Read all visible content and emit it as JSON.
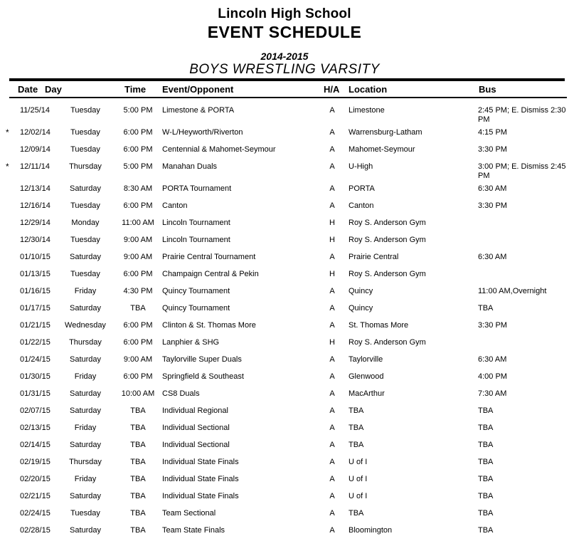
{
  "header": {
    "school": "Lincoln High School",
    "doc_title": "EVENT SCHEDULE",
    "season": "2014-2015",
    "team": "BOYS WRESTLING VARSITY"
  },
  "colors": {
    "text": "#000000",
    "background": "#ffffff"
  },
  "table": {
    "columns": {
      "date": "Date",
      "day": "Day",
      "time": "Time",
      "event": "Event/Opponent",
      "ha": "H/A",
      "location": "Location",
      "bus": "Bus"
    },
    "rows": [
      {
        "star": "",
        "date": "11/25/14",
        "day": "Tuesday",
        "time": "5:00 PM",
        "event": "Limestone & PORTA",
        "ha": "A",
        "location": "Limestone",
        "bus": "2:45 PM; E. Dismiss 2:30 PM"
      },
      {
        "star": "*",
        "date": "12/02/14",
        "day": "Tuesday",
        "time": "6:00 PM",
        "event": "W-L/Heyworth/Riverton",
        "ha": "A",
        "location": "Warrensburg-Latham",
        "bus": "4:15 PM"
      },
      {
        "star": "",
        "date": "12/09/14",
        "day": "Tuesday",
        "time": "6:00 PM",
        "event": "Centennial & Mahomet-Seymour",
        "ha": "A",
        "location": "Mahomet-Seymour",
        "bus": "3:30 PM"
      },
      {
        "star": "*",
        "date": "12/11/14",
        "day": "Thursday",
        "time": "5:00 PM",
        "event": "Manahan Duals",
        "ha": "A",
        "location": "U-High",
        "bus": "3:00 PM; E. Dismiss 2:45 PM"
      },
      {
        "star": "",
        "date": "12/13/14",
        "day": "Saturday",
        "time": "8:30 AM",
        "event": "PORTA Tournament",
        "ha": "A",
        "location": "PORTA",
        "bus": "6:30 AM"
      },
      {
        "star": "",
        "date": "12/16/14",
        "day": "Tuesday",
        "time": "6:00 PM",
        "event": "Canton",
        "ha": "A",
        "location": "Canton",
        "bus": "3:30 PM"
      },
      {
        "star": "",
        "date": "12/29/14",
        "day": "Monday",
        "time": "11:00 AM",
        "event": "Lincoln Tournament",
        "ha": "H",
        "location": "Roy S. Anderson Gym",
        "bus": ""
      },
      {
        "star": "",
        "date": "12/30/14",
        "day": "Tuesday",
        "time": "9:00 AM",
        "event": "Lincoln Tournament",
        "ha": "H",
        "location": "Roy S. Anderson Gym",
        "bus": ""
      },
      {
        "star": "",
        "date": "01/10/15",
        "day": "Saturday",
        "time": "9:00 AM",
        "event": "Prairie Central Tournament",
        "ha": "A",
        "location": "Prairie Central",
        "bus": "6:30 AM"
      },
      {
        "star": "",
        "date": "01/13/15",
        "day": "Tuesday",
        "time": "6:00 PM",
        "event": "Champaign Central & Pekin",
        "ha": "H",
        "location": "Roy S. Anderson Gym",
        "bus": ""
      },
      {
        "star": "",
        "date": "01/16/15",
        "day": "Friday",
        "time": "4:30 PM",
        "event": "Quincy Tournament",
        "ha": "A",
        "location": "Quincy",
        "bus": "11:00 AM,Overnight"
      },
      {
        "star": "",
        "date": "01/17/15",
        "day": "Saturday",
        "time": "TBA",
        "event": "Quincy Tournament",
        "ha": "A",
        "location": "Quincy",
        "bus": "TBA"
      },
      {
        "star": "",
        "date": "01/21/15",
        "day": "Wednesday",
        "time": "6:00 PM",
        "event": "Clinton & St. Thomas More",
        "ha": "A",
        "location": "St. Thomas More",
        "bus": "3:30 PM"
      },
      {
        "star": "",
        "date": "01/22/15",
        "day": "Thursday",
        "time": "6:00 PM",
        "event": "Lanphier & SHG",
        "ha": "H",
        "location": "Roy S. Anderson Gym",
        "bus": ""
      },
      {
        "star": "",
        "date": "01/24/15",
        "day": "Saturday",
        "time": "9:00 AM",
        "event": "Taylorville Super Duals",
        "ha": "A",
        "location": "Taylorville",
        "bus": "6:30 AM"
      },
      {
        "star": "",
        "date": "01/30/15",
        "day": "Friday",
        "time": "6:00 PM",
        "event": "Springfield & Southeast",
        "ha": "A",
        "location": "Glenwood",
        "bus": "4:00 PM"
      },
      {
        "star": "",
        "date": "01/31/15",
        "day": "Saturday",
        "time": "10:00 AM",
        "event": "CS8 Duals",
        "ha": "A",
        "location": "MacArthur",
        "bus": "7:30 AM"
      },
      {
        "star": "",
        "date": "02/07/15",
        "day": "Saturday",
        "time": "TBA",
        "event": "Individual Regional",
        "ha": "A",
        "location": "TBA",
        "bus": "TBA"
      },
      {
        "star": "",
        "date": "02/13/15",
        "day": "Friday",
        "time": "TBA",
        "event": "Individual Sectional",
        "ha": "A",
        "location": "TBA",
        "bus": "TBA"
      },
      {
        "star": "",
        "date": "02/14/15",
        "day": "Saturday",
        "time": "TBA",
        "event": "Individual Sectional",
        "ha": "A",
        "location": "TBA",
        "bus": "TBA"
      },
      {
        "star": "",
        "date": "02/19/15",
        "day": "Thursday",
        "time": "TBA",
        "event": "Individual State Finals",
        "ha": "A",
        "location": "U of I",
        "bus": "TBA"
      },
      {
        "star": "",
        "date": "02/20/15",
        "day": "Friday",
        "time": "TBA",
        "event": "Individual State Finals",
        "ha": "A",
        "location": "U of I",
        "bus": "TBA"
      },
      {
        "star": "",
        "date": "02/21/15",
        "day": "Saturday",
        "time": "TBA",
        "event": "Individual State Finals",
        "ha": "A",
        "location": "U of I",
        "bus": "TBA"
      },
      {
        "star": "",
        "date": "02/24/15",
        "day": "Tuesday",
        "time": "TBA",
        "event": "Team Sectional",
        "ha": "A",
        "location": "TBA",
        "bus": "TBA"
      },
      {
        "star": "",
        "date": "02/28/15",
        "day": "Saturday",
        "time": "TBA",
        "event": "Team State Finals",
        "ha": "A",
        "location": "Bloomington",
        "bus": "TBA"
      }
    ]
  }
}
